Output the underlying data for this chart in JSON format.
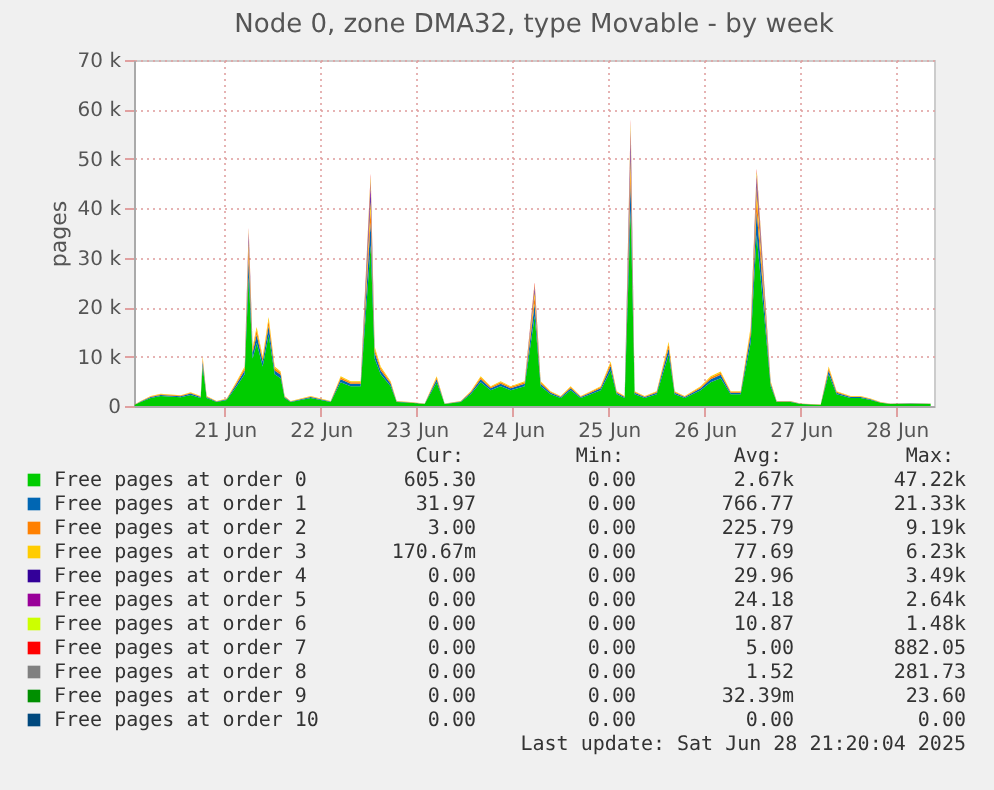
{
  "chart_data": {
    "type": "area",
    "stacked": true,
    "title": "Node 0, zone DMA32, type Movable - by week",
    "ylabel": "pages",
    "x": [
      "2025-06-20T13:30",
      "2025-06-20T15:00",
      "2025-06-20T17:30",
      "2025-06-20T20:00",
      "2025-06-21T01:00",
      "2025-06-21T03:30",
      "2025-06-21T06:00",
      "2025-06-21T06:30",
      "2025-06-21T07:30",
      "2025-06-21T10:00",
      "2025-06-21T12:30",
      "2025-06-21T15:00",
      "2025-06-21T17:00",
      "2025-06-21T18:00",
      "2025-06-21T19:00",
      "2025-06-21T20:00",
      "2025-06-21T21:30",
      "2025-06-21T23:00",
      "2025-06-22T00:30",
      "2025-06-22T02:00",
      "2025-06-22T03:00",
      "2025-06-22T04:30",
      "2025-06-22T07:00",
      "2025-06-22T09:30",
      "2025-06-22T12:00",
      "2025-06-22T14:30",
      "2025-06-22T17:00",
      "2025-06-22T19:30",
      "2025-06-22T22:00",
      "2025-06-23T00:30",
      "2025-06-23T01:30",
      "2025-06-23T03:00",
      "2025-06-23T05:30",
      "2025-06-23T07:00",
      "2025-06-23T10:30",
      "2025-06-23T14:00",
      "2025-06-23T17:00",
      "2025-06-23T19:00",
      "2025-06-23T23:00",
      "2025-06-24T01:30",
      "2025-06-24T04:00",
      "2025-06-24T06:30",
      "2025-06-24T09:00",
      "2025-06-24T11:30",
      "2025-06-24T15:00",
      "2025-06-24T17:30",
      "2025-06-24T19:00",
      "2025-06-24T21:30",
      "2025-06-25T00:00",
      "2025-06-25T02:30",
      "2025-06-25T05:00",
      "2025-06-25T07:30",
      "2025-06-25T10:00",
      "2025-06-25T12:30",
      "2025-06-25T14:00",
      "2025-06-25T16:00",
      "2025-06-25T17:30",
      "2025-06-25T18:30",
      "2025-06-25T21:00",
      "2025-06-26T00:00",
      "2025-06-26T03:00",
      "2025-06-26T04:30",
      "2025-06-26T07:00",
      "2025-06-26T11:00",
      "2025-06-26T13:30",
      "2025-06-26T16:00",
      "2025-06-26T18:30",
      "2025-06-26T21:00",
      "2025-06-26T23:30",
      "2025-06-27T01:00",
      "2025-06-27T04:30",
      "2025-06-27T06:00",
      "2025-06-27T09:30",
      "2025-06-27T12:00",
      "2025-06-27T17:00",
      "2025-06-27T19:00",
      "2025-06-27T21:00",
      "2025-06-28T00:30",
      "2025-06-28T03:00",
      "2025-06-28T05:30",
      "2025-06-28T08:00",
      "2025-06-28T10:30",
      "2025-06-28T15:30",
      "2025-06-28T20:30"
    ],
    "series": [
      {
        "name": "Free pages at order 0",
        "color": "#00cc00",
        "values": [
          240,
          800,
          1600,
          2000,
          1760,
          2240,
          1600,
          8000,
          1600,
          800,
          1200,
          4000,
          6400,
          26100,
          9600,
          12800,
          8000,
          14400,
          6400,
          5600,
          1600,
          800,
          1200,
          1600,
          1200,
          800,
          4800,
          4000,
          4000,
          32500,
          9600,
          6400,
          4000,
          800,
          640,
          400,
          4800,
          400,
          800,
          2400,
          4800,
          3200,
          4000,
          3200,
          4000,
          18200,
          4000,
          2400,
          1600,
          3200,
          1600,
          2400,
          3200,
          7200,
          2400,
          1600,
          39700,
          2400,
          1600,
          2400,
          10400,
          2400,
          1600,
          3200,
          4800,
          5600,
          2400,
          2400,
          12800,
          34600,
          4000,
          800,
          800,
          400,
          240,
          6400,
          2400,
          1600,
          1600,
          1200,
          640,
          400,
          480,
          400
        ]
      },
      {
        "name": "Free pages at order 1",
        "color": "#0066b3",
        "values": [
          30,
          100,
          200,
          250,
          220,
          280,
          200,
          1000,
          200,
          100,
          150,
          500,
          800,
          3600,
          1200,
          1600,
          1000,
          1800,
          800,
          700,
          200,
          100,
          150,
          200,
          150,
          100,
          600,
          500,
          500,
          4700,
          1200,
          800,
          500,
          100,
          80,
          50,
          600,
          50,
          100,
          300,
          600,
          400,
          500,
          400,
          500,
          2500,
          500,
          300,
          200,
          400,
          200,
          300,
          400,
          900,
          300,
          200,
          5800,
          300,
          200,
          300,
          1300,
          300,
          200,
          400,
          600,
          700,
          300,
          300,
          1600,
          4800,
          500,
          100,
          100,
          50,
          30,
          800,
          300,
          200,
          200,
          150,
          80,
          50,
          60,
          50
        ]
      },
      {
        "name": "Free pages at order 2",
        "color": "#ff8000",
        "values": [
          18,
          60,
          120,
          150,
          132,
          168,
          120,
          600,
          120,
          60,
          90,
          300,
          480,
          2160,
          720,
          960,
          600,
          1080,
          480,
          420,
          120,
          60,
          90,
          120,
          90,
          60,
          360,
          300,
          300,
          2820,
          720,
          480,
          300,
          60,
          48,
          30,
          360,
          30,
          60,
          180,
          360,
          240,
          300,
          240,
          300,
          1500,
          300,
          180,
          120,
          240,
          120,
          180,
          240,
          540,
          180,
          120,
          3480,
          180,
          120,
          180,
          780,
          180,
          120,
          240,
          360,
          420,
          180,
          180,
          960,
          2880,
          300,
          60,
          60,
          30,
          18,
          480,
          180,
          120,
          120,
          90,
          48,
          30,
          36,
          30
        ]
      },
      {
        "name": "Free pages at order 3",
        "color": "#ffcc00",
        "values": [
          12,
          40,
          80,
          100,
          88,
          112,
          80,
          400,
          80,
          40,
          60,
          200,
          320,
          1440,
          480,
          640,
          400,
          720,
          320,
          280,
          80,
          40,
          60,
          80,
          60,
          40,
          240,
          200,
          200,
          1880,
          480,
          320,
          200,
          40,
          32,
          20,
          240,
          20,
          40,
          120,
          240,
          160,
          200,
          160,
          200,
          1000,
          200,
          120,
          80,
          160,
          80,
          120,
          160,
          360,
          120,
          80,
          2320,
          120,
          80,
          120,
          520,
          120,
          80,
          160,
          240,
          280,
          120,
          120,
          640,
          1920,
          200,
          40,
          40,
          20,
          12,
          320,
          120,
          80,
          80,
          60,
          32,
          20,
          24,
          20
        ]
      },
      {
        "name": "Free pages at order 4",
        "color": "#330099",
        "values": [
          0,
          0,
          0,
          0,
          0,
          0,
          0,
          0,
          0,
          0,
          0,
          0,
          0,
          1000,
          0,
          0,
          0,
          0,
          0,
          0,
          0,
          0,
          0,
          0,
          0,
          0,
          0,
          0,
          0,
          2000,
          0,
          0,
          0,
          0,
          0,
          0,
          0,
          0,
          0,
          0,
          0,
          0,
          0,
          0,
          0,
          600,
          0,
          0,
          0,
          0,
          0,
          0,
          0,
          0,
          0,
          0,
          2500,
          0,
          0,
          0,
          0,
          0,
          0,
          0,
          0,
          0,
          0,
          0,
          0,
          1500,
          0,
          0,
          0,
          0,
          0,
          0,
          0,
          0,
          0,
          0,
          0,
          0,
          0,
          0
        ]
      },
      {
        "name": "Free pages at order 5",
        "color": "#990099",
        "values": [
          0,
          0,
          0,
          0,
          0,
          0,
          0,
          0,
          0,
          0,
          0,
          0,
          0,
          800,
          0,
          0,
          0,
          0,
          0,
          0,
          0,
          0,
          0,
          0,
          0,
          0,
          0,
          0,
          0,
          1500,
          0,
          0,
          0,
          0,
          0,
          0,
          0,
          0,
          0,
          0,
          0,
          0,
          0,
          0,
          0,
          500,
          0,
          0,
          0,
          0,
          0,
          0,
          0,
          0,
          0,
          0,
          2000,
          0,
          0,
          0,
          0,
          0,
          0,
          0,
          0,
          0,
          0,
          0,
          0,
          1000,
          0,
          0,
          0,
          0,
          0,
          0,
          0,
          0,
          0,
          0,
          0,
          0,
          0,
          0
        ]
      },
      {
        "name": "Free pages at order 6",
        "color": "#ccff00",
        "values": [
          0,
          0,
          0,
          0,
          0,
          0,
          0,
          0,
          0,
          0,
          0,
          0,
          0,
          500,
          0,
          0,
          0,
          0,
          0,
          0,
          0,
          0,
          0,
          0,
          0,
          0,
          0,
          0,
          0,
          1000,
          0,
          0,
          0,
          0,
          0,
          0,
          0,
          0,
          0,
          0,
          0,
          0,
          0,
          0,
          0,
          300,
          0,
          0,
          0,
          0,
          0,
          0,
          0,
          0,
          0,
          0,
          1400,
          0,
          0,
          0,
          0,
          0,
          0,
          0,
          0,
          0,
          0,
          0,
          0,
          800,
          0,
          0,
          0,
          0,
          0,
          0,
          0,
          0,
          0,
          0,
          0,
          0,
          0,
          0
        ]
      },
      {
        "name": "Free pages at order 7",
        "color": "#ff0000",
        "values": [
          0,
          0,
          0,
          0,
          0,
          0,
          0,
          0,
          0,
          0,
          0,
          0,
          0,
          400,
          0,
          0,
          0,
          0,
          0,
          0,
          0,
          0,
          0,
          0,
          0,
          0,
          0,
          0,
          0,
          600,
          0,
          0,
          0,
          0,
          0,
          0,
          0,
          0,
          0,
          0,
          0,
          0,
          0,
          0,
          0,
          400,
          0,
          0,
          0,
          0,
          0,
          0,
          0,
          0,
          0,
          0,
          800,
          0,
          0,
          0,
          0,
          0,
          0,
          0,
          0,
          0,
          0,
          0,
          0,
          500,
          0,
          0,
          0,
          0,
          0,
          0,
          0,
          0,
          0,
          0,
          0,
          0,
          0,
          0
        ]
      },
      {
        "name": "Free pages at order 8",
        "color": "#808080",
        "values": [
          null,
          null,
          null,
          null,
          null,
          null,
          null,
          null,
          null,
          null,
          null,
          null,
          null,
          null,
          null,
          null,
          null,
          null,
          null,
          null,
          null,
          null,
          null,
          null,
          null,
          null,
          null,
          null,
          null,
          null,
          null,
          null,
          null,
          null,
          null,
          null,
          null,
          null,
          null,
          null,
          null,
          null,
          null,
          null,
          null,
          null,
          null,
          null,
          null,
          null,
          null,
          null,
          null,
          null,
          null,
          null,
          null,
          null,
          null,
          null,
          null,
          null,
          null,
          null,
          null,
          null,
          null,
          null,
          null,
          null,
          null,
          null,
          null,
          null,
          null,
          null,
          null,
          null,
          null,
          null,
          null,
          null,
          null,
          null
        ]
      },
      {
        "name": "Free pages at order 9",
        "color": "#008f00",
        "values": [
          null,
          null,
          null,
          null,
          null,
          null,
          null,
          null,
          null,
          null,
          null,
          null,
          null,
          null,
          null,
          null,
          null,
          null,
          null,
          null,
          null,
          null,
          null,
          null,
          null,
          null,
          null,
          null,
          null,
          null,
          null,
          null,
          null,
          null,
          null,
          null,
          null,
          null,
          null,
          null,
          null,
          null,
          null,
          null,
          null,
          null,
          null,
          null,
          null,
          null,
          null,
          null,
          null,
          null,
          null,
          null,
          null,
          null,
          null,
          null,
          null,
          null,
          null,
          null,
          null,
          null,
          null,
          null,
          null,
          null,
          null,
          null,
          null,
          null,
          null,
          null,
          null,
          null,
          null,
          null,
          null,
          null,
          null,
          null
        ]
      },
      {
        "name": "Free pages at order 10",
        "color": "#00487d",
        "values": [
          null,
          null,
          null,
          null,
          null,
          null,
          null,
          null,
          null,
          null,
          null,
          null,
          null,
          null,
          null,
          null,
          null,
          null,
          null,
          null,
          null,
          null,
          null,
          null,
          null,
          null,
          null,
          null,
          null,
          null,
          null,
          null,
          null,
          null,
          null,
          null,
          null,
          null,
          null,
          null,
          null,
          null,
          null,
          null,
          null,
          null,
          null,
          null,
          null,
          null,
          null,
          null,
          null,
          null,
          null,
          null,
          null,
          null,
          null,
          null,
          null,
          null,
          null,
          null,
          null,
          null,
          null,
          null,
          null,
          null,
          null,
          null,
          null,
          null,
          null,
          null,
          null,
          null,
          null,
          null,
          null,
          null,
          null,
          null
        ]
      }
    ],
    "xlim": [
      "2025-06-20T13:20",
      "2025-06-28T21:20"
    ],
    "xticks": [
      {
        "value": "2025-06-21T12:00",
        "label": "21 Jun"
      },
      {
        "value": "2025-06-22T12:00",
        "label": "22 Jun"
      },
      {
        "value": "2025-06-23T12:00",
        "label": "23 Jun"
      },
      {
        "value": "2025-06-24T12:00",
        "label": "24 Jun"
      },
      {
        "value": "2025-06-25T12:00",
        "label": "25 Jun"
      },
      {
        "value": "2025-06-26T12:00",
        "label": "26 Jun"
      },
      {
        "value": "2025-06-27T12:00",
        "label": "27 Jun"
      },
      {
        "value": "2025-06-28T12:00",
        "label": "28 Jun"
      }
    ],
    "ylim": [
      0,
      70000
    ],
    "yticks": [
      0,
      {
        "value": 10000,
        "label": "10 k"
      },
      {
        "value": 20000,
        "label": "20 k"
      },
      {
        "value": 30000,
        "label": "30 k"
      },
      {
        "value": 40000,
        "label": "40 k"
      },
      {
        "value": 50000,
        "label": "50 k"
      },
      {
        "value": 60000,
        "label": "60 k"
      },
      {
        "value": 70000,
        "label": "70 k"
      }
    ],
    "grid": true,
    "legend": "bottom",
    "annotations": [
      "Cur:",
      "Min:",
      "Avg:",
      "Max:",
      "605.30",
      "0.00",
      "2.67k",
      "47.22k",
      "31.97",
      "0.00",
      "766.77",
      "21.33k",
      "3.00",
      "0.00",
      "225.79",
      "9.19k",
      "170.67m",
      "0.00",
      "77.69",
      "6.23k",
      "0.00",
      "0.00",
      "29.96",
      "3.49k",
      "0.00",
      "0.00",
      "24.18",
      "2.64k",
      "0.00",
      "0.00",
      "10.87",
      "1.48k",
      "0.00",
      "0.00",
      "5.00",
      "882.05",
      "0.00",
      "0.00",
      "1.52",
      "281.73",
      "0.00",
      "0.00",
      "32.39m",
      "23.60",
      "0.00",
      "0.00",
      "0.00",
      "0.00",
      "Last update: Sat Jun 28 21:20:04 2025"
    ]
  }
}
